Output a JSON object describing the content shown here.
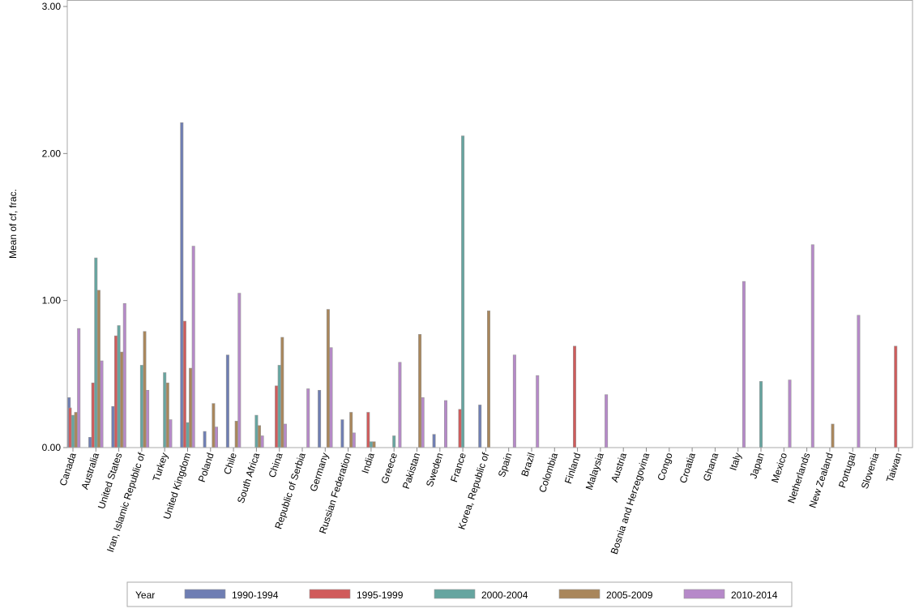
{
  "chart_data": {
    "type": "bar",
    "title": "",
    "xlabel": "",
    "ylabel": "Mean of cf, frac.",
    "ylim": [
      0,
      3.0
    ],
    "yticks": [
      "0.00",
      "1.00",
      "2.00",
      "3.00"
    ],
    "legend_title": "Year",
    "legend_position": "bottom",
    "categories": [
      "Canada",
      "Australia",
      "United States",
      "Iran, Islamic Republic of",
      "Turkey",
      "United Kingdom",
      "Poland",
      "Chile",
      "South Africa",
      "China",
      "Republic of Serbia",
      "Germany",
      "Russian Federation",
      "India",
      "Greece",
      "Pakistan",
      "Sweden",
      "France",
      "Korea, Republic of",
      "Spain",
      "Brazil",
      "Colombia",
      "Finland",
      "Malaysia",
      "Austria",
      "Bosnia and Herzegovina",
      "Congo",
      "Croatia",
      "Ghana",
      "Italy",
      "Japan",
      "Mexico",
      "Netherlands",
      "New Zealand",
      "Portugal",
      "Slovenia",
      "Taiwan"
    ],
    "series": [
      {
        "name": "1990-1994",
        "color": "#6f7eb3",
        "values": [
          0.34,
          0.07,
          0.28,
          null,
          null,
          2.21,
          0.11,
          0.63,
          null,
          null,
          null,
          0.39,
          0.19,
          null,
          null,
          null,
          0.09,
          null,
          0.29,
          null,
          null,
          null,
          null,
          null,
          null,
          null,
          null,
          null,
          null,
          null,
          null,
          null,
          null,
          null,
          null,
          null,
          null
        ]
      },
      {
        "name": "1995-1999",
        "color": "#d05b5b",
        "values": [
          0.27,
          0.44,
          0.76,
          null,
          null,
          0.86,
          null,
          null,
          null,
          0.42,
          null,
          null,
          null,
          0.24,
          null,
          null,
          null,
          0.26,
          null,
          null,
          null,
          null,
          0.69,
          null,
          null,
          null,
          null,
          null,
          null,
          null,
          null,
          null,
          null,
          null,
          null,
          null,
          0.69
        ]
      },
      {
        "name": "2000-2004",
        "color": "#66a5a0",
        "values": [
          0.22,
          1.29,
          0.83,
          0.56,
          0.51,
          0.17,
          null,
          null,
          0.22,
          0.56,
          null,
          null,
          null,
          0.04,
          0.08,
          null,
          null,
          2.12,
          null,
          null,
          null,
          null,
          null,
          null,
          null,
          null,
          null,
          null,
          null,
          null,
          0.45,
          null,
          null,
          null,
          null,
          null,
          null
        ]
      },
      {
        "name": "2005-2009",
        "color": "#a9865b",
        "values": [
          0.24,
          1.07,
          0.65,
          0.79,
          0.44,
          0.54,
          0.3,
          0.18,
          0.15,
          0.75,
          null,
          0.94,
          0.24,
          0.04,
          null,
          0.77,
          null,
          null,
          0.93,
          null,
          null,
          null,
          null,
          null,
          null,
          null,
          null,
          null,
          null,
          null,
          null,
          null,
          null,
          0.16,
          null,
          null,
          null
        ]
      },
      {
        "name": "2010-2014",
        "color": "#b689c9",
        "values": [
          0.81,
          0.59,
          0.98,
          0.39,
          0.19,
          1.37,
          0.14,
          1.05,
          0.08,
          0.16,
          0.4,
          0.68,
          0.1,
          null,
          0.58,
          0.34,
          0.32,
          null,
          null,
          0.63,
          0.49,
          null,
          null,
          0.36,
          null,
          null,
          null,
          null,
          null,
          1.13,
          null,
          0.46,
          1.38,
          null,
          0.9,
          null,
          null
        ]
      }
    ]
  }
}
